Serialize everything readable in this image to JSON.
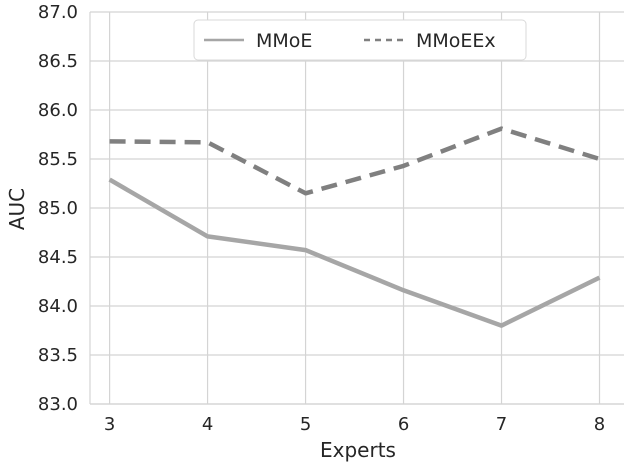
{
  "chart_data": {
    "type": "line",
    "xlabel": "Experts",
    "ylabel": "AUC",
    "x": [
      3,
      4,
      5,
      6,
      7,
      8
    ],
    "ylim": [
      83.0,
      87.0
    ],
    "yticks": [
      "83.0",
      "83.5",
      "84.0",
      "84.5",
      "85.0",
      "85.5",
      "86.0",
      "86.5",
      "87.0"
    ],
    "xticks": [
      "3",
      "4",
      "5",
      "6",
      "7",
      "8"
    ],
    "grid": true,
    "legend_placement": "top-center",
    "series": [
      {
        "name": "MMoE",
        "values": [
          85.29,
          84.71,
          84.57,
          84.16,
          83.8,
          84.29
        ],
        "color": "#a6a6a6",
        "style": "solid"
      },
      {
        "name": "MMoEEx",
        "values": [
          85.68,
          85.67,
          85.15,
          85.43,
          85.81,
          85.5
        ],
        "color": "#808080",
        "style": "dashed"
      }
    ]
  }
}
